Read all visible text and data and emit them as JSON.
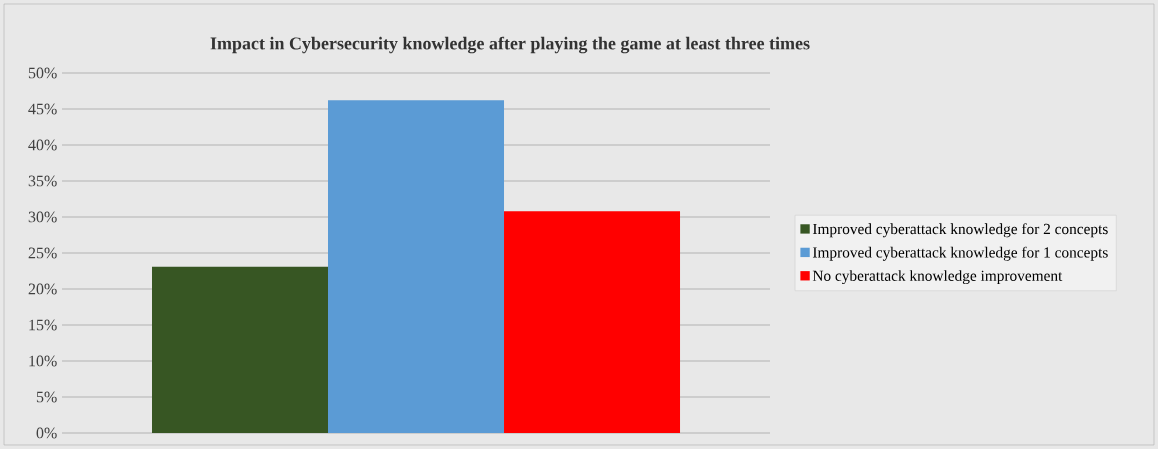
{
  "chart_data": {
    "type": "bar",
    "title": "Impact in Cybersecurity knowledge after playing the game at least three times",
    "categories": [
      null
    ],
    "series": [
      {
        "name": "Improved cyberattack knowledge for 2 concepts",
        "color": "#375623",
        "values": [
          23.1
        ]
      },
      {
        "name": "Improved cyberattack knowledge for 1 concepts",
        "color": "#5b9bd5",
        "values": [
          46.2
        ]
      },
      {
        "name": "No cyberattack knowledge improvement",
        "color": "#ff0000",
        "values": [
          30.8
        ]
      }
    ],
    "ylim": [
      0,
      50
    ],
    "yticks": [
      {
        "value": 0,
        "label": "0%"
      },
      {
        "value": 5,
        "label": "5%"
      },
      {
        "value": 10,
        "label": "10%"
      },
      {
        "value": 15,
        "label": "15%"
      },
      {
        "value": 20,
        "label": "20%"
      },
      {
        "value": 25,
        "label": "25%"
      },
      {
        "value": 30,
        "label": "30%"
      },
      {
        "value": 35,
        "label": "35%"
      },
      {
        "value": 40,
        "label": "40%"
      },
      {
        "value": 45,
        "label": "45%"
      },
      {
        "value": 50,
        "label": "50%"
      }
    ],
    "grid": "y",
    "legend": "right"
  }
}
